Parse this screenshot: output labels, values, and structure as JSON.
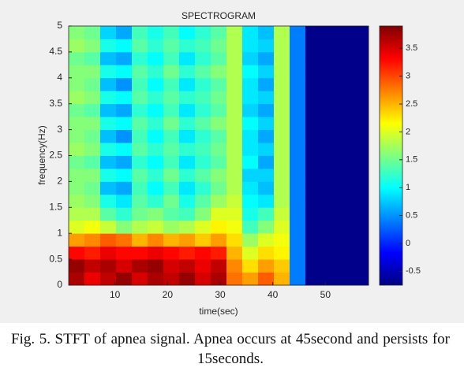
{
  "chart_data": {
    "type": "heatmap",
    "title": "SPECTROGRAM",
    "xlabel": "time(sec)",
    "ylabel": "frequency(Hz)",
    "colormap": "jet",
    "clim": [
      -0.75,
      3.9
    ],
    "cticks": [
      -0.5,
      0,
      0.5,
      1,
      1.5,
      2,
      2.5,
      3,
      3.5
    ],
    "xlim": [
      1.2,
      58.2
    ],
    "xticks": [
      10,
      20,
      30,
      40,
      50
    ],
    "ylim": [
      0,
      5
    ],
    "yticks": [
      0,
      0.5,
      1,
      1.5,
      2,
      2.5,
      3,
      3.5,
      4,
      4.5,
      5
    ],
    "x": [
      2.7,
      5.7,
      8.7,
      11.7,
      14.7,
      17.7,
      20.7,
      23.7,
      26.7,
      29.7,
      32.7,
      35.7,
      38.7,
      41.7,
      44.7,
      47.7,
      50.7,
      53.7,
      56.7
    ],
    "y": [
      0.125,
      0.375,
      0.625,
      0.875,
      1.125,
      1.375,
      1.625,
      1.875,
      2.125,
      2.375,
      2.625,
      2.875,
      3.125,
      3.375,
      3.625,
      3.875,
      4.125,
      4.375,
      4.625,
      4.875
    ],
    "z": [
      [
        3.7,
        3.4,
        3.6,
        3.8,
        3.5,
        3.7,
        3.6,
        3.8,
        3.5,
        3.7,
        2.8,
        2.6,
        2.9,
        2.5,
        0.4,
        -0.7,
        -0.7,
        -0.7,
        -0.7
      ],
      [
        3.8,
        3.6,
        3.7,
        3.5,
        3.7,
        3.8,
        3.5,
        3.6,
        3.4,
        3.6,
        2.7,
        2.3,
        2.6,
        2.4,
        0.4,
        -0.7,
        -0.7,
        -0.7,
        -0.7
      ],
      [
        3.3,
        3.2,
        3.4,
        3.3,
        3.3,
        3.4,
        3.3,
        3.2,
        3.3,
        3.2,
        2.5,
        2.0,
        2.3,
        2.2,
        0.4,
        -0.7,
        -0.7,
        -0.7,
        -0.7
      ],
      [
        2.6,
        2.7,
        2.9,
        2.8,
        2.5,
        2.7,
        2.5,
        2.6,
        2.4,
        2.6,
        2.3,
        1.7,
        2.0,
        2.1,
        0.4,
        -0.7,
        -0.7,
        -0.7,
        -0.7
      ],
      [
        2.0,
        2.1,
        1.9,
        1.6,
        1.8,
        1.9,
        1.7,
        1.8,
        2.0,
        2.2,
        2.1,
        1.3,
        1.6,
        2.0,
        0.4,
        -0.7,
        -0.7,
        -0.7,
        -0.7
      ],
      [
        1.8,
        1.8,
        1.4,
        1.2,
        1.5,
        1.6,
        1.4,
        1.3,
        1.6,
        2.0,
        2.0,
        1.1,
        1.3,
        1.9,
        0.4,
        -0.7,
        -0.7,
        -0.7,
        -0.7
      ],
      [
        1.7,
        1.6,
        1.1,
        0.9,
        1.4,
        1.2,
        1.5,
        1.1,
        1.4,
        1.7,
        1.9,
        1.0,
        0.9,
        1.8,
        0.4,
        -0.7,
        -0.7,
        -0.7,
        -0.7
      ],
      [
        1.6,
        1.5,
        0.7,
        0.6,
        1.3,
        1.0,
        1.3,
        0.9,
        1.2,
        1.5,
        1.8,
        0.9,
        0.7,
        1.8,
        0.4,
        -0.7,
        -0.7,
        -0.7,
        -0.7
      ],
      [
        1.6,
        1.6,
        1.1,
        1.0,
        1.4,
        1.2,
        1.5,
        1.2,
        1.4,
        1.6,
        1.8,
        0.8,
        0.8,
        1.8,
        0.4,
        -0.7,
        -0.7,
        -0.7,
        -0.7
      ],
      [
        1.5,
        1.4,
        0.7,
        0.6,
        1.2,
        1.0,
        1.3,
        0.9,
        1.2,
        1.4,
        1.8,
        1.0,
        0.6,
        1.8,
        0.4,
        -0.7,
        -0.7,
        -0.7,
        -0.7
      ],
      [
        1.7,
        1.6,
        1.1,
        1.0,
        1.4,
        1.2,
        1.4,
        1.2,
        1.3,
        1.5,
        1.8,
        0.9,
        0.8,
        1.8,
        0.4,
        -0.7,
        -0.7,
        -0.7,
        -0.7
      ],
      [
        1.6,
        1.5,
        0.7,
        0.5,
        1.3,
        1.0,
        1.3,
        0.9,
        1.2,
        1.4,
        1.8,
        0.9,
        0.6,
        1.8,
        0.4,
        -0.7,
        -0.7,
        -0.7,
        -0.7
      ],
      [
        1.6,
        1.6,
        1.1,
        1.0,
        1.4,
        1.2,
        1.5,
        1.2,
        1.4,
        1.6,
        1.8,
        1.0,
        0.8,
        1.8,
        0.4,
        -0.7,
        -0.7,
        -0.7,
        -0.7
      ],
      [
        1.5,
        1.4,
        0.7,
        0.6,
        1.2,
        1.0,
        1.3,
        0.9,
        1.2,
        1.4,
        1.8,
        0.8,
        0.6,
        1.8,
        0.4,
        -0.7,
        -0.7,
        -0.7,
        -0.7
      ],
      [
        1.7,
        1.6,
        1.1,
        1.0,
        1.4,
        1.2,
        1.4,
        1.2,
        1.3,
        1.5,
        1.8,
        0.9,
        0.8,
        1.8,
        0.4,
        -0.7,
        -0.7,
        -0.7,
        -0.7
      ],
      [
        1.6,
        1.5,
        0.7,
        0.5,
        1.3,
        1.0,
        1.3,
        0.9,
        1.2,
        1.4,
        1.8,
        0.9,
        0.6,
        1.8,
        0.4,
        -0.7,
        -0.7,
        -0.7,
        -0.7
      ],
      [
        1.6,
        1.6,
        1.1,
        1.0,
        1.4,
        1.2,
        1.5,
        1.2,
        1.4,
        1.6,
        1.8,
        1.0,
        0.8,
        1.8,
        0.4,
        -0.7,
        -0.7,
        -0.7,
        -0.7
      ],
      [
        1.5,
        1.4,
        0.7,
        0.6,
        1.2,
        1.0,
        1.3,
        0.9,
        1.2,
        1.4,
        1.8,
        0.8,
        0.6,
        1.8,
        0.4,
        -0.7,
        -0.7,
        -0.7,
        -0.7
      ],
      [
        1.7,
        1.6,
        1.1,
        1.0,
        1.4,
        1.2,
        1.4,
        1.2,
        1.3,
        1.5,
        1.8,
        0.9,
        0.8,
        1.8,
        0.4,
        -0.7,
        -0.7,
        -0.7,
        -0.7
      ],
      [
        1.6,
        1.5,
        0.8,
        0.6,
        1.3,
        1.1,
        1.3,
        1.0,
        1.2,
        1.4,
        1.8,
        0.9,
        0.7,
        1.8,
        0.4,
        -0.7,
        -0.7,
        -0.7,
        -0.7
      ]
    ]
  },
  "caption": "Fig. 5. STFT of apnea signal. Apnea occurs at 45second and persists for 15seconds."
}
